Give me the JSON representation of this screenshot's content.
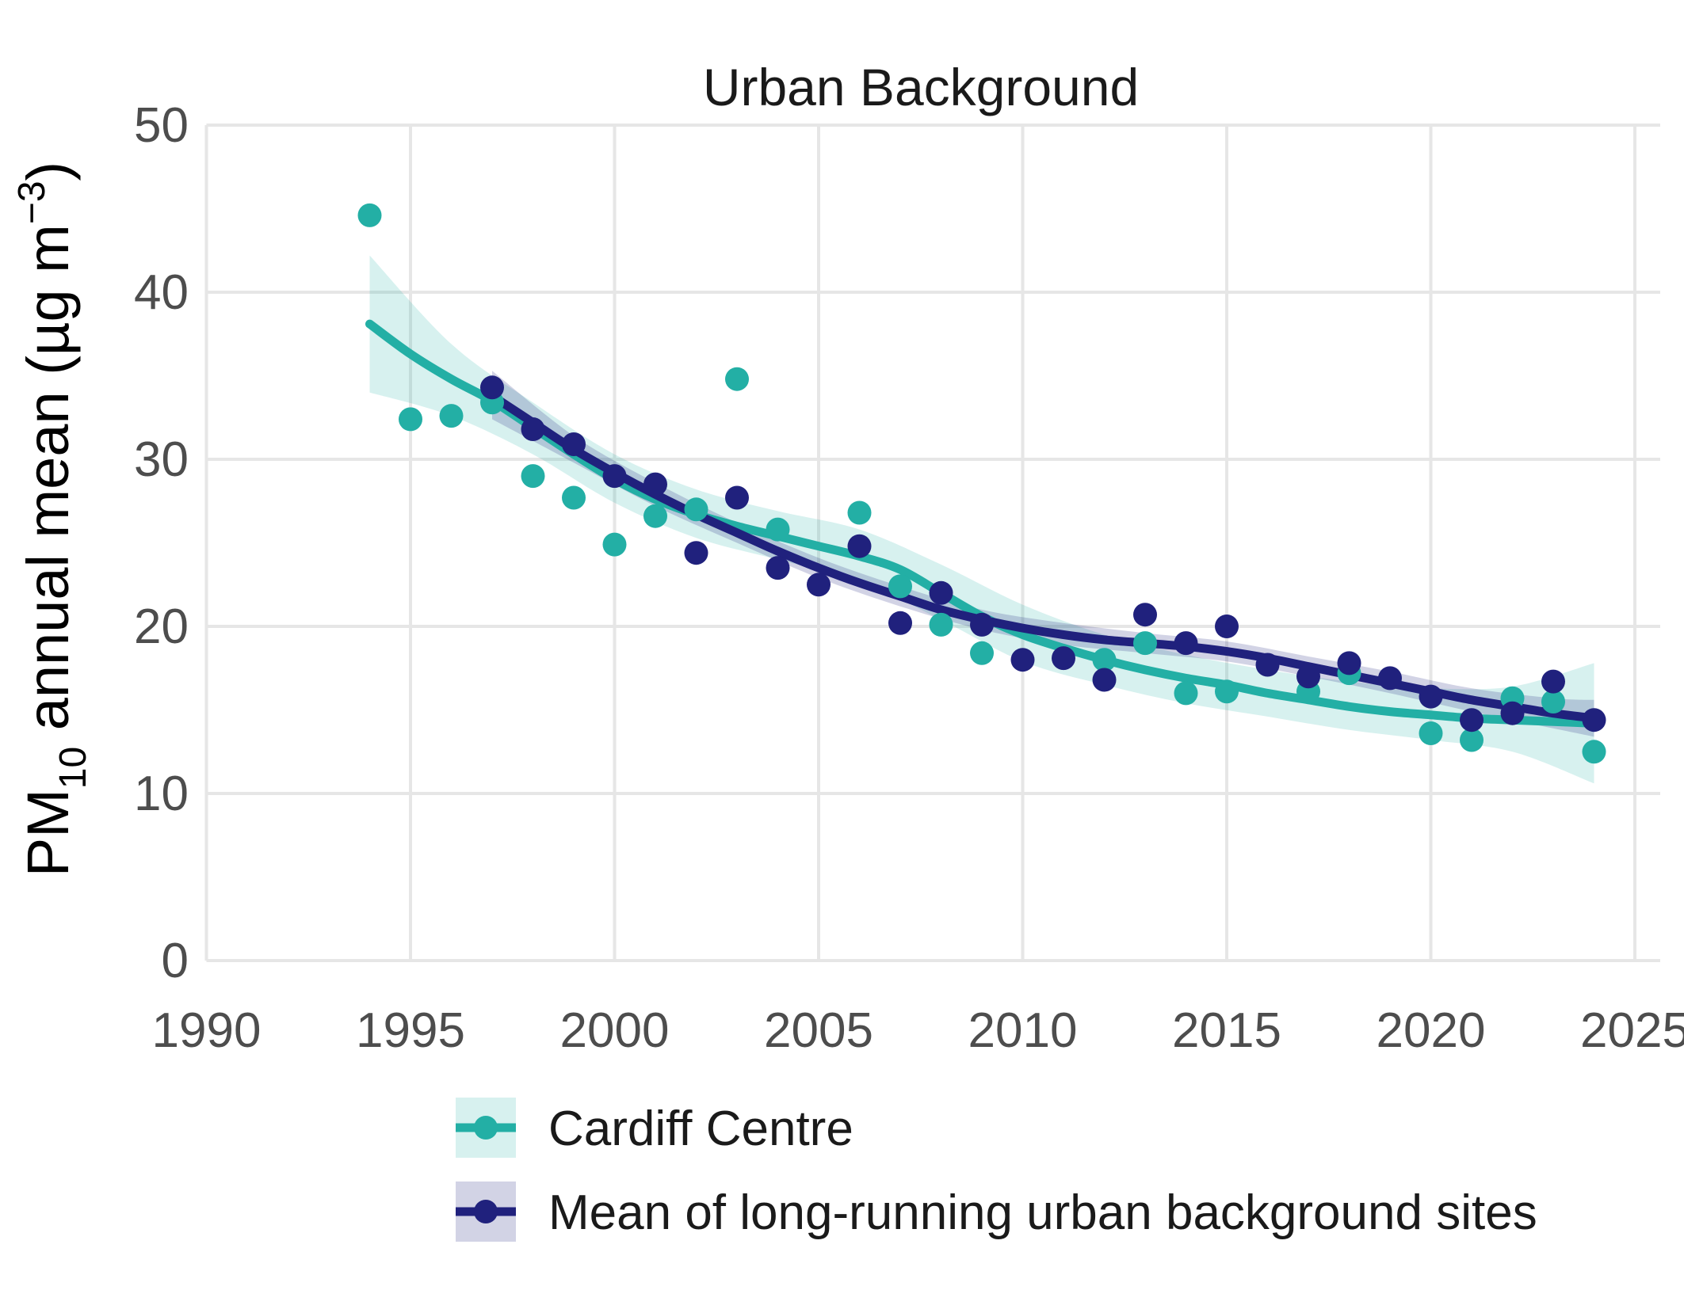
{
  "chart_data": {
    "type": "scatter",
    "title": "Urban Background",
    "ylabel_parts": [
      {
        "text": "PM",
        "shift": null
      },
      {
        "text": "10",
        "shift": "sub"
      },
      {
        "text": " annual mean (µg m",
        "shift": null
      },
      {
        "text": "−3",
        "shift": "sup"
      },
      {
        "text": ")",
        "shift": null
      }
    ],
    "xlabel": "",
    "xlim": [
      1990,
      2025
    ],
    "ylim": [
      0,
      50
    ],
    "xticks": [
      "1990",
      "1995",
      "2000",
      "2005",
      "2010",
      "2015",
      "2020",
      "2025"
    ],
    "yticks": [
      "0",
      "10",
      "20",
      "30",
      "40",
      "50"
    ],
    "grid": true,
    "legend_position": "bottom-left",
    "background": "#ffffff",
    "gridline_color": "#e6e6e6",
    "tick_label_color": "#4d4d4d",
    "title_color": "#1a1a1a",
    "series": [
      {
        "name": "Cardiff Centre",
        "color": "#23afa5",
        "band_color": "rgba(35,175,165,0.18)",
        "points": {
          "x": [
            1994,
            1995,
            1996,
            1997,
            1998,
            1999,
            2000,
            2001,
            2002,
            2003,
            2004,
            2006,
            2007,
            2008,
            2009,
            2012,
            2013,
            2014,
            2015,
            2017,
            2018,
            2020,
            2021,
            2022,
            2023,
            2024
          ],
          "y": [
            44.6,
            32.4,
            32.6,
            33.4,
            29.0,
            27.7,
            24.9,
            26.6,
            27.0,
            34.8,
            25.8,
            26.8,
            22.4,
            20.1,
            18.4,
            18.0,
            19.0,
            16.0,
            16.1,
            16.1,
            17.2,
            13.6,
            13.2,
            15.7,
            15.5,
            12.5
          ]
        },
        "trend": {
          "x": [
            1994,
            1995,
            1996,
            1997,
            1998,
            1999,
            2000,
            2001,
            2002,
            2003,
            2004,
            2005,
            2006,
            2007,
            2008,
            2009,
            2010,
            2011,
            2012,
            2013,
            2014,
            2015,
            2016,
            2017,
            2018,
            2019,
            2020,
            2021,
            2022,
            2023,
            2024
          ],
          "y": [
            38.1,
            36.3,
            34.8,
            33.5,
            31.9,
            30.3,
            28.8,
            27.6,
            26.7,
            26.0,
            25.4,
            24.8,
            24.2,
            23.4,
            22.0,
            20.6,
            19.5,
            18.7,
            18.0,
            17.4,
            16.9,
            16.5,
            16.0,
            15.6,
            15.2,
            14.9,
            14.7,
            14.5,
            14.4,
            14.3,
            14.2
          ]
        },
        "band": {
          "x": [
            1994,
            1996,
            1998,
            2000,
            2002,
            2004,
            2006,
            2008,
            2010,
            2012,
            2014,
            2016,
            2018,
            2020,
            2022,
            2024
          ],
          "upper": [
            42.2,
            36.9,
            33.4,
            30.3,
            28.2,
            26.9,
            25.8,
            23.7,
            21.3,
            19.5,
            18.3,
            17.4,
            16.7,
            16.3,
            16.4,
            17.8
          ],
          "lower": [
            34.0,
            32.6,
            30.3,
            27.4,
            25.3,
            24.0,
            22.7,
            20.4,
            17.9,
            16.5,
            15.4,
            14.6,
            13.8,
            13.2,
            12.5,
            10.6
          ]
        }
      },
      {
        "name": "Mean of long-running urban background sites",
        "color": "#20217d",
        "band_color": "rgba(32,33,125,0.20)",
        "points": {
          "x": [
            1997,
            1998,
            1999,
            2000,
            2001,
            2002,
            2003,
            2004,
            2005,
            2006,
            2007,
            2008,
            2009,
            2010,
            2011,
            2012,
            2013,
            2014,
            2015,
            2016,
            2017,
            2018,
            2019,
            2020,
            2021,
            2022,
            2023,
            2024
          ],
          "y": [
            34.3,
            31.8,
            30.9,
            29.0,
            28.5,
            24.4,
            27.7,
            23.5,
            22.5,
            24.8,
            20.2,
            22.0,
            20.1,
            18.0,
            18.1,
            16.8,
            20.7,
            19.0,
            20.0,
            17.7,
            17.0,
            17.8,
            16.9,
            15.8,
            14.4,
            14.8,
            16.7,
            14.4
          ]
        },
        "trend": {
          "x": [
            1997,
            1998,
            1999,
            2000,
            2001,
            2002,
            2003,
            2004,
            2005,
            2006,
            2007,
            2008,
            2009,
            2010,
            2011,
            2012,
            2013,
            2014,
            2015,
            2016,
            2017,
            2018,
            2019,
            2020,
            2021,
            2022,
            2023,
            2024
          ],
          "y": [
            33.8,
            32.2,
            30.6,
            29.2,
            27.9,
            26.7,
            25.6,
            24.5,
            23.5,
            22.6,
            21.8,
            21.0,
            20.4,
            19.9,
            19.5,
            19.2,
            19.0,
            18.8,
            18.5,
            18.1,
            17.6,
            17.1,
            16.6,
            16.1,
            15.6,
            15.2,
            14.8,
            14.5
          ]
        },
        "band": {
          "x": [
            1997,
            1999,
            2001,
            2003,
            2005,
            2007,
            2009,
            2011,
            2013,
            2015,
            2017,
            2019,
            2021,
            2023,
            2024
          ],
          "upper": [
            35.3,
            31.4,
            28.6,
            26.2,
            24.1,
            22.4,
            21.0,
            20.2,
            19.6,
            19.1,
            18.2,
            17.3,
            16.3,
            15.7,
            15.6
          ],
          "lower": [
            32.4,
            29.8,
            27.2,
            25.0,
            22.9,
            21.2,
            19.8,
            18.9,
            18.4,
            17.9,
            17.0,
            16.0,
            14.9,
            13.9,
            13.4
          ]
        }
      }
    ]
  }
}
